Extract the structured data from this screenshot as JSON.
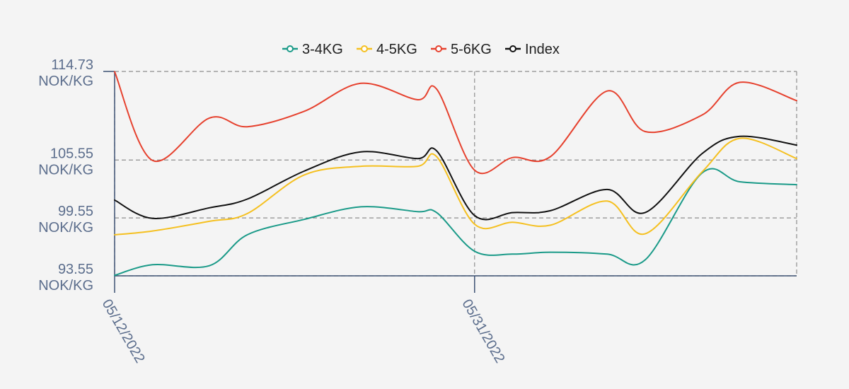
{
  "chart_data": {
    "type": "line",
    "title": "",
    "xlabel": "",
    "ylabel": "",
    "x_start": "05/12/2022",
    "x_end": "06/17/2022",
    "x_ticks": [
      {
        "date": "05/12/2022",
        "label": "05/12/2022"
      },
      {
        "date": "05/31/2022",
        "label": "05/31/2022"
      }
    ],
    "ylim": [
      93.55,
      114.73
    ],
    "y_ticks": [
      {
        "value": 114.73,
        "label_value": "114.73",
        "label_unit": "NOK/KG"
      },
      {
        "value": 105.55,
        "label_value": "105.55",
        "label_unit": "NOK/KG"
      },
      {
        "value": 99.55,
        "label_value": "99.55",
        "label_unit": "NOK/KG"
      },
      {
        "value": 93.55,
        "label_value": "93.55",
        "label_unit": "NOK/KG"
      }
    ],
    "grid": true,
    "legend_position": "top-center",
    "x": [
      "05/12/2022",
      "05/14/2022",
      "05/17/2022",
      "05/19/2022",
      "05/22/2022",
      "05/25/2022",
      "05/28/2022",
      "05/29/2022",
      "05/31/2022",
      "06/02/2022",
      "06/04/2022",
      "06/07/2022",
      "06/09/2022",
      "06/12/2022",
      "06/14/2022",
      "06/17/2022"
    ],
    "series": [
      {
        "name": "3-4KG",
        "color": "#1a9a88",
        "values": [
          93.6,
          94.7,
          94.6,
          97.8,
          99.4,
          100.7,
          100.2,
          100.1,
          96.1,
          95.8,
          96.0,
          95.8,
          95.2,
          104.2,
          103.3,
          103.0
        ]
      },
      {
        "name": "4-5KG",
        "color": "#f5c020",
        "values": [
          97.8,
          98.2,
          99.2,
          100.0,
          104.0,
          104.9,
          104.9,
          105.9,
          98.9,
          99.1,
          98.8,
          101.3,
          97.9,
          104.3,
          107.8,
          105.7
        ]
      },
      {
        "name": "5-6KG",
        "color": "#e6412e",
        "values": [
          114.7,
          105.5,
          109.9,
          109.0,
          110.6,
          113.5,
          111.8,
          112.9,
          104.5,
          105.8,
          105.9,
          112.7,
          108.5,
          110.2,
          113.6,
          111.7
        ]
      },
      {
        "name": "Index",
        "color": "#111111",
        "values": [
          101.4,
          99.5,
          100.6,
          101.5,
          104.4,
          106.4,
          105.7,
          106.5,
          99.8,
          100.1,
          100.3,
          102.5,
          100.1,
          106.2,
          108.0,
          107.1
        ]
      }
    ]
  }
}
